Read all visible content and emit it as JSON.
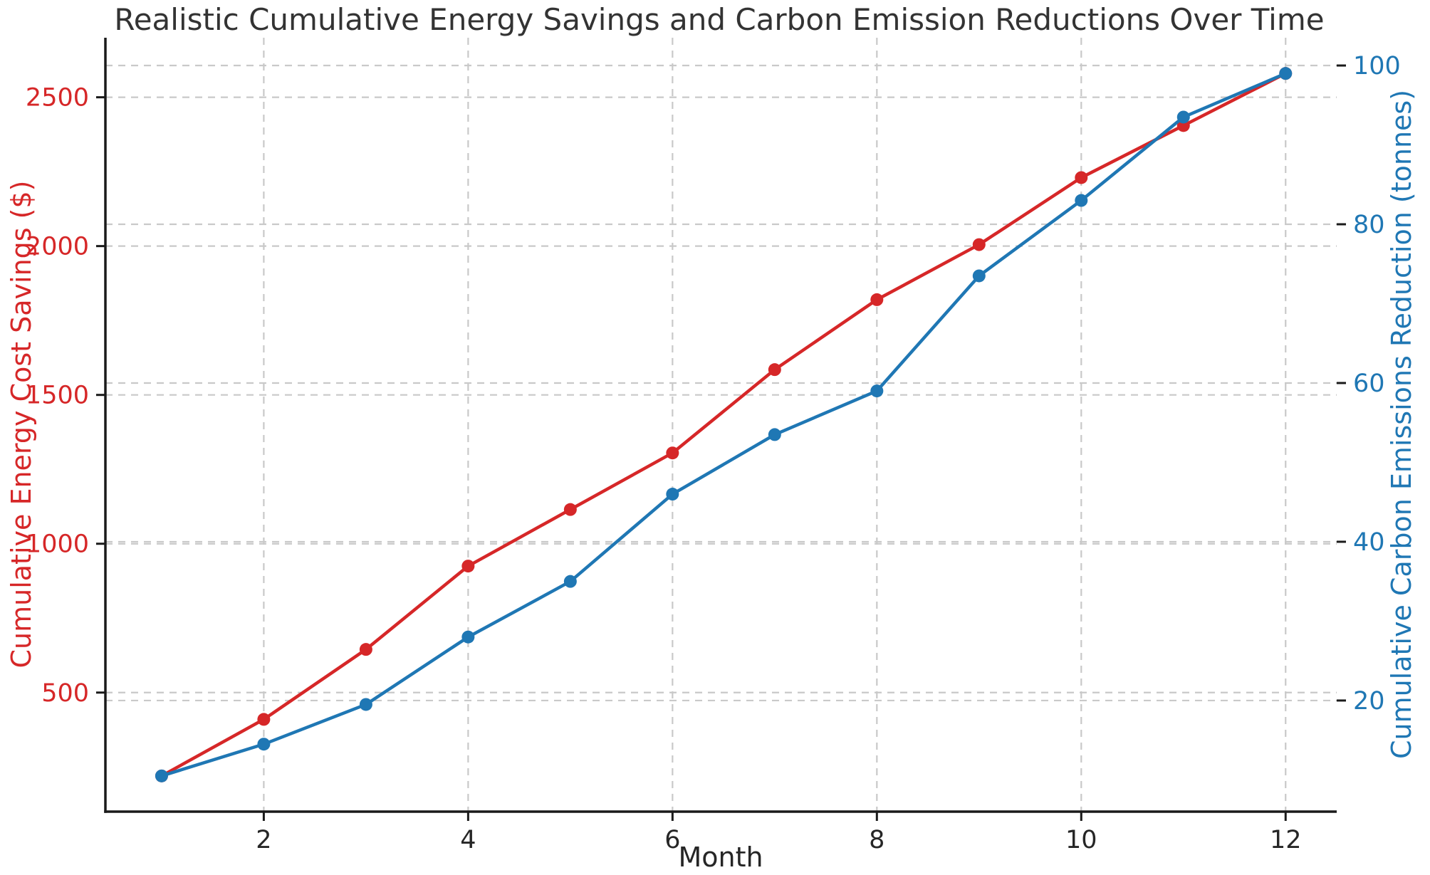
{
  "title": "Realistic Cumulative Energy Savings and Carbon Emission Reductions Over Time",
  "colors": {
    "savings": "#d62728",
    "carbon": "#1f77b4",
    "grid": "#c9c9c9",
    "spine": "#1a1a1a",
    "tick_text": "#262626",
    "title_text": "#333333",
    "background": "#ffffff"
  },
  "chart_data": {
    "type": "line",
    "title": "Realistic Cumulative Energy Savings and Carbon Emission Reductions Over Time",
    "xlabel": "Month",
    "x": [
      1,
      2,
      3,
      4,
      5,
      6,
      7,
      8,
      9,
      10,
      11,
      12
    ],
    "x_ticks": [
      2,
      4,
      6,
      8,
      10,
      12
    ],
    "x_range": [
      0.45,
      12.5
    ],
    "grid": true,
    "legend": "none",
    "marker": "circle",
    "left_axis": {
      "label": "Cumulative Energy Cost Savings ($)",
      "color": "#d62728",
      "ticks": [
        500,
        1000,
        1500,
        2000,
        2500
      ],
      "range": [
        100,
        2700
      ]
    },
    "right_axis": {
      "label": "Cumulative Carbon Emissions Reduction (tonnes)",
      "color": "#1f77b4",
      "ticks": [
        20,
        40,
        60,
        80,
        100
      ],
      "range": [
        6,
        103.5
      ]
    },
    "series": [
      {
        "name": "Cumulative Energy Cost Savings ($)",
        "axis": "left",
        "color": "#d62728",
        "values": [
          220,
          410,
          645,
          925,
          1115,
          1305,
          1585,
          1820,
          2005,
          2230,
          2405,
          2580
        ]
      },
      {
        "name": "Cumulative Carbon Emissions Reduction (tonnes)",
        "axis": "right",
        "color": "#1f77b4",
        "values": [
          10.5,
          14.5,
          19.5,
          28,
          35,
          46,
          53.5,
          59,
          73.5,
          83,
          93.5,
          99
        ]
      }
    ]
  }
}
